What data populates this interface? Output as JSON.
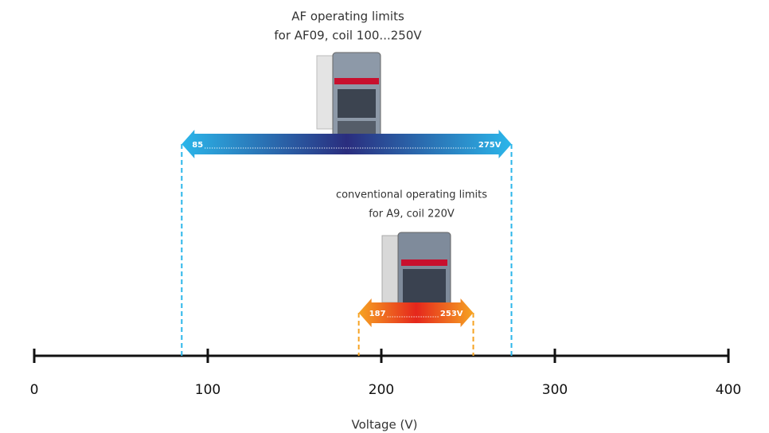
{
  "chart_data": {
    "type": "range",
    "xlabel": "Voltage (V)",
    "xlim": [
      0,
      400
    ],
    "xticks": [
      0,
      100,
      200,
      300,
      400
    ],
    "series": [
      {
        "name": [
          "AF operating limits",
          "for  AF09, coil 100...250V"
        ],
        "values": [
          85,
          275
        ],
        "value_labels": [
          "85",
          "275V"
        ],
        "colors": [
          "#2bb6ea",
          "#2a2d7e"
        ]
      },
      {
        "name": [
          "conventional operating limits",
          "for A9, coil 220V"
        ],
        "values": [
          187,
          253
        ],
        "value_labels": [
          "187",
          "253V"
        ],
        "colors": [
          "#f6a323",
          "#e5261c"
        ]
      }
    ]
  }
}
